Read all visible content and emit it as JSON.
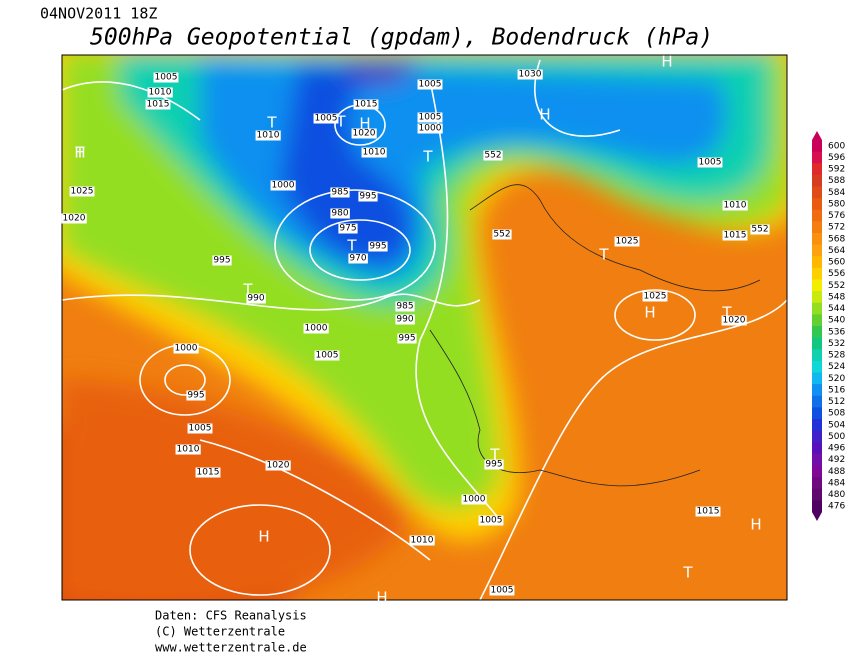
{
  "header": {
    "run": "04NOV2011 18Z",
    "title": "500hPa Geopotential (gpdam), Bodendruck (hPa)"
  },
  "legend": {
    "ticks": [
      600,
      596,
      592,
      588,
      584,
      580,
      576,
      572,
      568,
      564,
      560,
      556,
      552,
      548,
      544,
      540,
      536,
      532,
      528,
      524,
      520,
      516,
      512,
      508,
      504,
      500,
      496,
      492,
      488,
      484,
      480,
      476
    ],
    "colors": [
      "#c8005a",
      "#d8104e",
      "#e02a2a",
      "#d83c20",
      "#e04c18",
      "#e85c10",
      "#f06c10",
      "#f57e10",
      "#fa9010",
      "#fca210",
      "#ffb800",
      "#ffd000",
      "#f2ee00",
      "#c8ea10",
      "#94de20",
      "#62d030",
      "#32c850",
      "#12c880",
      "#10d0b0",
      "#10d8d8",
      "#10b8f0",
      "#1090f0",
      "#1070e8",
      "#1050e0",
      "#2232d8",
      "#4020c8",
      "#5a10b8",
      "#7010a8",
      "#800898",
      "#700880",
      "#600870",
      "#500060"
    ]
  },
  "isobar_labels": [
    1005,
    1010,
    1015,
    1010,
    1005,
    1015,
    1020,
    1010,
    1005,
    1000,
    1030,
    1005,
    1000,
    995,
    985,
    980,
    975,
    970,
    995,
    990,
    985,
    990,
    995,
    1000,
    1005,
    1025,
    1020,
    995,
    1000,
    995,
    1005,
    1010,
    1015,
    1020,
    1025,
    1025,
    1020,
    1005,
    1010,
    1015,
    1000,
    1005,
    1010,
    1005,
    1015,
    995,
    552,
    552,
    552
  ],
  "pressure_centers": [
    "H",
    "T",
    "T",
    "H",
    "T",
    "H",
    "T",
    "T",
    "T",
    "H",
    "T",
    "H",
    "T",
    "H",
    "T",
    "H",
    "T",
    "H"
  ],
  "footer": {
    "source": "Daten: CFS Reanalysis",
    "copyright": "(C) Wetterzentrale",
    "url": "www.wetterzentrale.de"
  }
}
